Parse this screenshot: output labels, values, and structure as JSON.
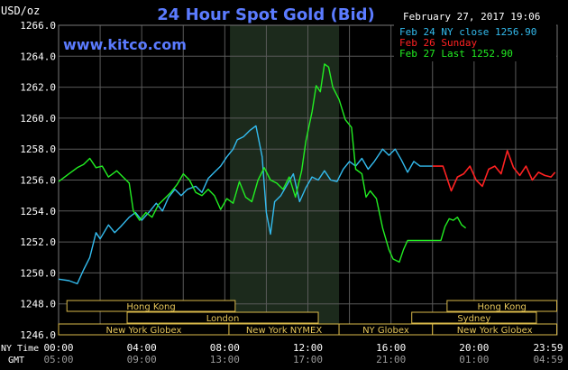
{
  "header": {
    "title": "24 Hour Spot Gold (Bid)",
    "unit": "USD/oz",
    "website": "www.kitco.com",
    "datetime": "February 27, 2017 19:06"
  },
  "legend": [
    {
      "label": "Feb 24 NY close 1256.90",
      "color": "#33bbee"
    },
    {
      "label": "Feb 26 Sunday",
      "color": "#ff2222"
    },
    {
      "label": "Feb 27 Last 1252.90",
      "color": "#22ee22"
    }
  ],
  "axis": {
    "row_label_ny": "NY Time",
    "row_label_gmt": "GMT"
  },
  "market_bars": {
    "row1": [
      "Hong Kong",
      "Hong Kong"
    ],
    "row2": [
      "London",
      "Sydney"
    ],
    "row3": [
      "New York Globex",
      "New York NYMEX",
      "NY Globex",
      "New York Globex"
    ]
  },
  "chart_data": {
    "type": "line",
    "title": "24 Hour Spot Gold (Bid)",
    "ylabel": "USD/oz",
    "ylim": [
      1246.0,
      1266.0
    ],
    "yticks": [
      "1266.0",
      "1264.0",
      "1262.0",
      "1260.0",
      "1258.0",
      "1256.0",
      "1254.0",
      "1252.0",
      "1250.0",
      "1248.0",
      "1246.0"
    ],
    "x_ticks_ny": [
      "00:00",
      "04:00",
      "08:00",
      "12:00",
      "16:00",
      "20:00",
      "23:59"
    ],
    "x_ticks_gmt": [
      "05:00",
      "09:00",
      "13:00",
      "17:00",
      "21:00",
      "01:00",
      "04:59"
    ],
    "grid": true,
    "legend_position": "top-right",
    "highlight_band_hours": [
      8.25,
      13.5
    ],
    "series": [
      {
        "name": "Feb 24 NY close 1256.90",
        "color": "#33bbee",
        "points": [
          [
            0,
            1249.6
          ],
          [
            0.5,
            1249.5
          ],
          [
            0.9,
            1249.3
          ],
          [
            1.2,
            1250.2
          ],
          [
            1.5,
            1251.0
          ],
          [
            1.8,
            1252.6
          ],
          [
            2.0,
            1252.2
          ],
          [
            2.4,
            1253.1
          ],
          [
            2.7,
            1252.6
          ],
          [
            3.0,
            1253.0
          ],
          [
            3.4,
            1253.6
          ],
          [
            3.7,
            1253.9
          ],
          [
            4.0,
            1253.4
          ],
          [
            4.4,
            1254.0
          ],
          [
            4.7,
            1254.5
          ],
          [
            5.0,
            1254.0
          ],
          [
            5.3,
            1254.9
          ],
          [
            5.6,
            1255.4
          ],
          [
            5.9,
            1255.0
          ],
          [
            6.2,
            1255.4
          ],
          [
            6.6,
            1255.6
          ],
          [
            6.9,
            1255.2
          ],
          [
            7.2,
            1256.1
          ],
          [
            7.5,
            1256.5
          ],
          [
            7.8,
            1256.9
          ],
          [
            8.1,
            1257.5
          ],
          [
            8.4,
            1258.0
          ],
          [
            8.6,
            1258.6
          ],
          [
            8.9,
            1258.8
          ],
          [
            9.2,
            1259.2
          ],
          [
            9.5,
            1259.5
          ],
          [
            9.8,
            1257.5
          ],
          [
            10.0,
            1253.9
          ],
          [
            10.2,
            1252.5
          ],
          [
            10.4,
            1254.6
          ],
          [
            10.7,
            1255.0
          ],
          [
            11.0,
            1255.7
          ],
          [
            11.3,
            1256.4
          ],
          [
            11.6,
            1254.6
          ],
          [
            11.9,
            1255.5
          ],
          [
            12.2,
            1256.2
          ],
          [
            12.5,
            1256.0
          ],
          [
            12.8,
            1256.6
          ],
          [
            13.1,
            1256.0
          ],
          [
            13.4,
            1255.9
          ],
          [
            13.7,
            1256.7
          ],
          [
            14.0,
            1257.2
          ],
          [
            14.3,
            1256.9
          ],
          [
            14.6,
            1257.4
          ],
          [
            14.9,
            1256.7
          ],
          [
            15.2,
            1257.2
          ],
          [
            15.6,
            1258.0
          ],
          [
            15.9,
            1257.6
          ],
          [
            16.2,
            1258.0
          ],
          [
            16.5,
            1257.3
          ],
          [
            16.8,
            1256.5
          ],
          [
            17.1,
            1257.2
          ],
          [
            17.4,
            1256.9
          ],
          [
            17.7,
            1256.9
          ],
          [
            18.0,
            1256.9
          ]
        ]
      },
      {
        "name": "Feb 26 Sunday",
        "color": "#ff2222",
        "points": [
          [
            18.0,
            1256.9
          ],
          [
            18.5,
            1256.9
          ],
          [
            18.7,
            1256.1
          ],
          [
            18.9,
            1255.3
          ],
          [
            19.2,
            1256.2
          ],
          [
            19.5,
            1256.4
          ],
          [
            19.8,
            1256.9
          ],
          [
            20.1,
            1256.0
          ],
          [
            20.4,
            1255.6
          ],
          [
            20.7,
            1256.7
          ],
          [
            21.0,
            1256.9
          ],
          [
            21.3,
            1256.4
          ],
          [
            21.6,
            1257.9
          ],
          [
            21.9,
            1256.8
          ],
          [
            22.2,
            1256.3
          ],
          [
            22.5,
            1256.9
          ],
          [
            22.8,
            1256.0
          ],
          [
            23.1,
            1256.5
          ],
          [
            23.4,
            1256.3
          ],
          [
            23.7,
            1256.2
          ],
          [
            23.9,
            1256.5
          ]
        ]
      },
      {
        "name": "Feb 27 Last 1252.90",
        "color": "#22ee22",
        "points": [
          [
            0,
            1255.9
          ],
          [
            0.5,
            1256.4
          ],
          [
            0.9,
            1256.8
          ],
          [
            1.2,
            1257.0
          ],
          [
            1.5,
            1257.4
          ],
          [
            1.8,
            1256.8
          ],
          [
            2.1,
            1256.9
          ],
          [
            2.4,
            1256.2
          ],
          [
            2.8,
            1256.6
          ],
          [
            3.1,
            1256.2
          ],
          [
            3.4,
            1255.8
          ],
          [
            3.6,
            1254.0
          ],
          [
            3.9,
            1253.4
          ],
          [
            4.2,
            1253.9
          ],
          [
            4.5,
            1253.6
          ],
          [
            4.8,
            1254.4
          ],
          [
            5.1,
            1254.8
          ],
          [
            5.4,
            1255.2
          ],
          [
            5.7,
            1255.7
          ],
          [
            6.0,
            1256.4
          ],
          [
            6.3,
            1256.0
          ],
          [
            6.6,
            1255.2
          ],
          [
            6.9,
            1255.0
          ],
          [
            7.2,
            1255.4
          ],
          [
            7.5,
            1255.0
          ],
          [
            7.8,
            1254.1
          ],
          [
            8.1,
            1254.8
          ],
          [
            8.4,
            1254.5
          ],
          [
            8.7,
            1255.9
          ],
          [
            9.0,
            1254.9
          ],
          [
            9.3,
            1254.6
          ],
          [
            9.6,
            1256.0
          ],
          [
            9.9,
            1256.8
          ],
          [
            10.2,
            1256.0
          ],
          [
            10.5,
            1255.8
          ],
          [
            10.8,
            1255.4
          ],
          [
            11.1,
            1256.2
          ],
          [
            11.4,
            1254.9
          ],
          [
            11.7,
            1256.6
          ],
          [
            11.9,
            1258.5
          ],
          [
            12.2,
            1260.4
          ],
          [
            12.4,
            1262.1
          ],
          [
            12.6,
            1261.7
          ],
          [
            12.8,
            1263.5
          ],
          [
            13.0,
            1263.3
          ],
          [
            13.2,
            1262.0
          ],
          [
            13.5,
            1261.2
          ],
          [
            13.8,
            1259.9
          ],
          [
            14.1,
            1259.4
          ],
          [
            14.3,
            1256.7
          ],
          [
            14.6,
            1256.4
          ],
          [
            14.8,
            1254.9
          ],
          [
            15.0,
            1255.3
          ],
          [
            15.3,
            1254.8
          ],
          [
            15.6,
            1252.9
          ],
          [
            15.9,
            1251.5
          ],
          [
            16.1,
            1250.9
          ],
          [
            16.4,
            1250.7
          ],
          [
            16.6,
            1251.5
          ],
          [
            16.8,
            1252.1
          ],
          [
            17.2,
            1252.1
          ],
          [
            17.6,
            1252.1
          ],
          [
            18.0,
            1252.1
          ],
          [
            18.4,
            1252.1
          ],
          [
            18.6,
            1253.0
          ],
          [
            18.8,
            1253.5
          ],
          [
            19.0,
            1253.4
          ],
          [
            19.2,
            1253.6
          ],
          [
            19.4,
            1253.1
          ],
          [
            19.6,
            1252.9
          ]
        ]
      }
    ]
  }
}
